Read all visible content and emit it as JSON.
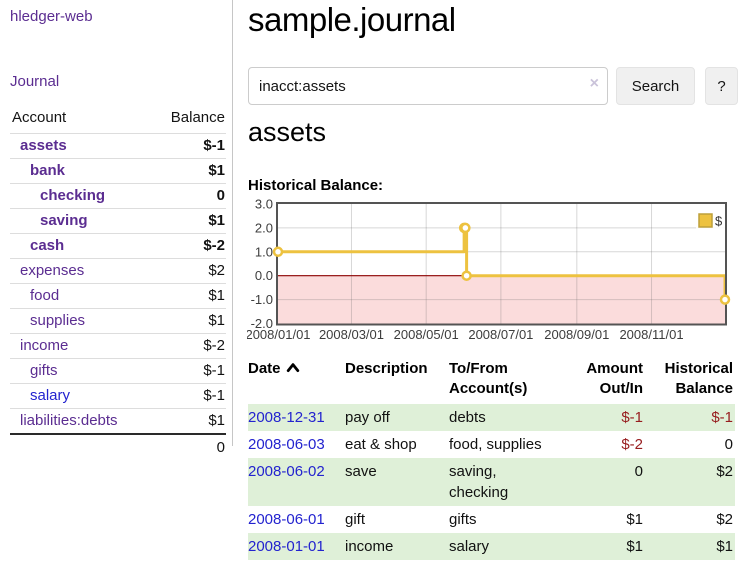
{
  "app": {
    "brand": "hledger-web",
    "nav_journal": "Journal"
  },
  "colors": {
    "link_purple": "#5b2d91",
    "link_blue": "#2323cf",
    "negative_strong": "#971c1e",
    "negative_faded": "#c46a6a",
    "row_stripe_green": "#dff0d8",
    "chart_line_gold": "#edc240",
    "chart_negative_fill": "#fbdcdc",
    "chart_zero_line": "#8b0000"
  },
  "sidebar": {
    "accounts_header": {
      "account": "Account",
      "balance": "Balance"
    },
    "accounts": [
      {
        "name": "assets",
        "indent": 1,
        "balance": "$-1",
        "bold": true,
        "neg": "strong"
      },
      {
        "name": "bank",
        "indent": 2,
        "balance": "$1",
        "bold": true
      },
      {
        "name": "checking",
        "indent": 3,
        "balance": "0",
        "bold": true
      },
      {
        "name": "saving",
        "indent": 3,
        "balance": "$1",
        "bold": true
      },
      {
        "name": "cash",
        "indent": 2,
        "balance": "$-2",
        "bold": true,
        "neg": "strong"
      },
      {
        "name": "expenses",
        "indent": 1,
        "balance": "$2"
      },
      {
        "name": "food",
        "indent": 2,
        "balance": "$1"
      },
      {
        "name": "supplies",
        "indent": 2,
        "balance": "$1"
      },
      {
        "name": "income",
        "indent": 1,
        "balance": "$-2",
        "neg": "faded"
      },
      {
        "name": "gifts",
        "indent": 2,
        "balance": "$-1",
        "neg": "faded"
      },
      {
        "name": "salary",
        "indent": 2,
        "balance": "$-1",
        "neg": "faded",
        "link": "blue"
      },
      {
        "name": "liabilities:debts",
        "indent": 1,
        "balance": "$1"
      }
    ],
    "total": "0"
  },
  "header": {
    "title": "sample.journal"
  },
  "search": {
    "query": "inacct:assets",
    "clear_icon": "×",
    "button_label": "Search",
    "help_label": "?"
  },
  "account_page": {
    "title": "assets",
    "chart_label": "Historical Balance:"
  },
  "chart_data": {
    "type": "line",
    "style": "step",
    "legend": [
      "$"
    ],
    "legend_position": "top-right",
    "title": "Historical Balance",
    "ylim": [
      -2.0,
      3.0
    ],
    "y_ticks": [
      3.0,
      2.0,
      1.0,
      0.0,
      -1.0,
      -2.0
    ],
    "y_tick_labels": [
      "3.0",
      "2.0",
      "1.0",
      "0.0",
      "-1.0",
      "-2.0"
    ],
    "x_ticks": [
      {
        "label": "2008/01/01",
        "day": 0
      },
      {
        "label": "2008/03/01",
        "day": 60
      },
      {
        "label": "2008/05/01",
        "day": 121
      },
      {
        "label": "2008/07/01",
        "day": 182
      },
      {
        "label": "2008/09/01",
        "day": 244
      },
      {
        "label": "2008/11/01",
        "day": 305
      }
    ],
    "x_range_days": 365,
    "grid": true,
    "negative_region_shaded": true,
    "points": [
      {
        "date": "2008-01-01",
        "day": 0,
        "value": 1
      },
      {
        "date": "2008-06-01",
        "day": 152,
        "value": 2
      },
      {
        "date": "2008-06-02",
        "day": 153,
        "value": 2
      },
      {
        "date": "2008-06-03",
        "day": 154,
        "value": 0
      },
      {
        "date": "2008-12-31",
        "day": 365,
        "value": -1
      }
    ]
  },
  "register": {
    "columns": [
      {
        "label": "Date",
        "sorted": "asc"
      },
      {
        "label": "Description"
      },
      {
        "label": "To/From Account(s)"
      },
      {
        "label": "Amount Out/In"
      },
      {
        "label": "Historical Balance"
      }
    ],
    "rows": [
      {
        "date": "2008-12-31",
        "description": "pay off",
        "accounts": "debts",
        "amount": "$-1",
        "amount_neg": true,
        "balance": "$-1",
        "balance_neg": true
      },
      {
        "date": "2008-06-03",
        "description": "eat & shop",
        "accounts": "food, supplies",
        "amount": "$-2",
        "amount_neg": true,
        "balance": "0",
        "balance_neg": false
      },
      {
        "date": "2008-06-02",
        "description": "save",
        "accounts": "saving, checking",
        "amount": "0",
        "amount_neg": false,
        "balance": "$2",
        "balance_neg": false
      },
      {
        "date": "2008-06-01",
        "description": "gift",
        "accounts": "gifts",
        "amount": "$1",
        "amount_neg": false,
        "balance": "$2",
        "balance_neg": false
      },
      {
        "date": "2008-01-01",
        "description": "income",
        "accounts": "salary",
        "amount": "$1",
        "amount_neg": false,
        "balance": "$1",
        "balance_neg": false
      }
    ]
  }
}
